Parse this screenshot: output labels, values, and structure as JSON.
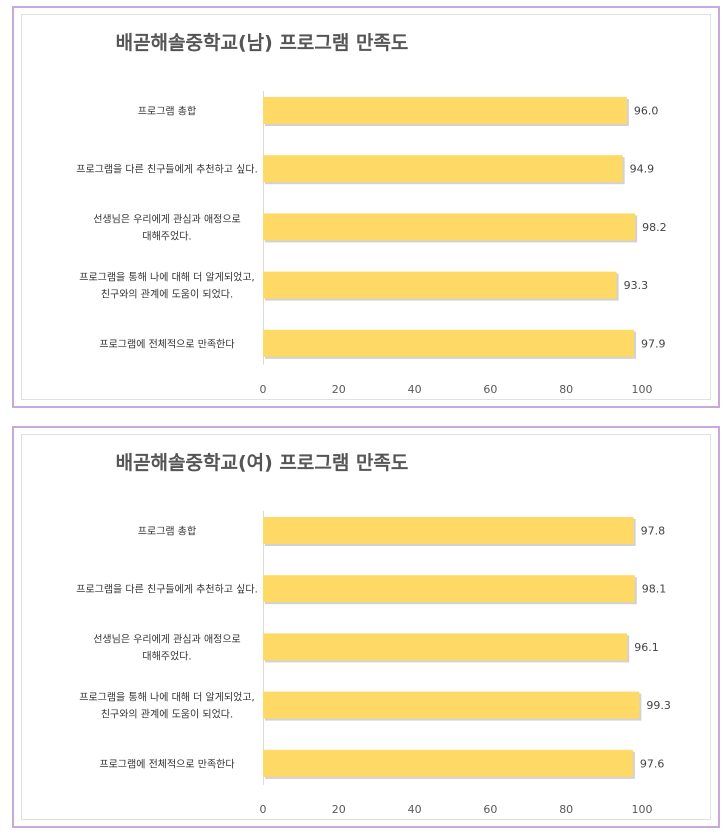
{
  "chart_data": [
    {
      "type": "bar",
      "orientation": "horizontal",
      "title": "배곧해솔중학교(남) 프로그램 만족도",
      "categories": [
        [
          "프로그램 총합"
        ],
        [
          "프로그램을 다른 친구들에게 추천하고 싶다."
        ],
        [
          "선생님은 우리에게 관심과 애정으로",
          "대해주었다."
        ],
        [
          "프로그램을 통해 나에 대해 더 알게되었고,",
          "친구와의 관계에 도움이 되었다."
        ],
        [
          "프로그램에 전체적으로 만족한다"
        ]
      ],
      "values": [
        96.0,
        94.9,
        98.2,
        93.3,
        97.9
      ],
      "value_labels": [
        "96.0",
        "94.9",
        "98.2",
        "93.3",
        "97.9"
      ],
      "xlim": [
        0,
        100
      ],
      "xticks": [
        "0",
        "20",
        "40",
        "60",
        "80",
        "100"
      ],
      "grid": false,
      "bar_color": "#ffd966"
    },
    {
      "type": "bar",
      "orientation": "horizontal",
      "title": "배곧해솔중학교(여) 프로그램 만족도",
      "categories": [
        [
          "프로그램 총합"
        ],
        [
          "프로그램을 다른 친구들에게 추천하고 싶다."
        ],
        [
          "선생님은 우리에게 관심과 애정으로",
          "대해주었다."
        ],
        [
          "프로그램을 통해 나에 대해 더 알게되었고,",
          "친구와의 관계에 도움이 되었다."
        ],
        [
          "프로그램에 전체적으로 만족한다"
        ]
      ],
      "values": [
        97.8,
        98.1,
        96.1,
        99.3,
        97.6
      ],
      "value_labels": [
        "97.8",
        "98.1",
        "96.1",
        "99.3",
        "97.6"
      ],
      "xlim": [
        0,
        100
      ],
      "xticks": [
        "0",
        "20",
        "40",
        "60",
        "80",
        "100"
      ],
      "grid": false,
      "bar_color": "#ffd966"
    }
  ]
}
